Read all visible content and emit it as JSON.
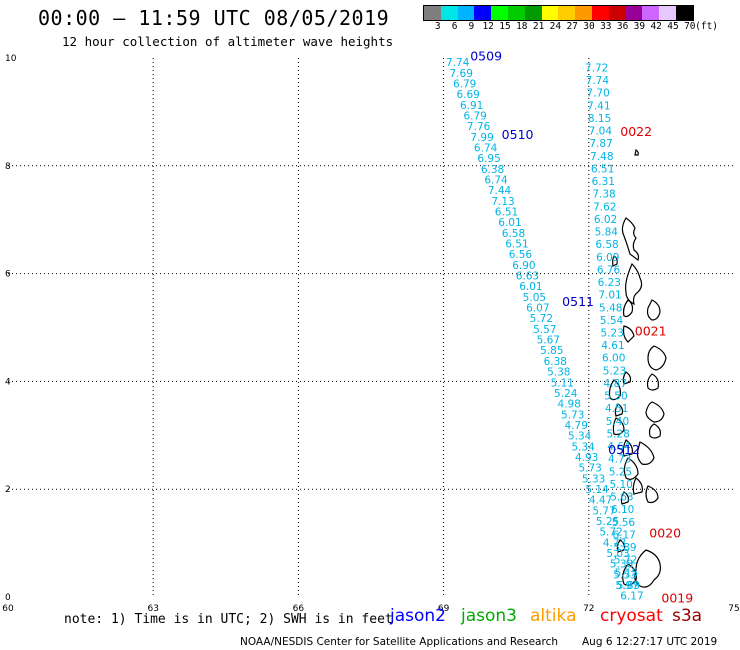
{
  "header": {
    "title": "00:00 – 11:59 UTC 08/05/2019",
    "subtitle": "12 hour collection of altimeter wave heights"
  },
  "colorbar": {
    "colors": [
      "#7f7f7f",
      "#00e6e6",
      "#00b4ff",
      "#0000ff",
      "#00ff00",
      "#00cc00",
      "#009900",
      "#ffff00",
      "#ffcc00",
      "#ff9900",
      "#ff0000",
      "#cc0000",
      "#990099",
      "#cc66ff",
      "#e6c8ff",
      "#000000"
    ],
    "labels": [
      "3",
      "6",
      "9",
      "12",
      "15",
      "18",
      "21",
      "24",
      "27",
      "30",
      "33",
      "36",
      "39",
      "42",
      "45",
      "70",
      "(ft)"
    ]
  },
  "axes": {
    "x_ticks": [
      "60",
      "63",
      "66",
      "69",
      "72",
      "75"
    ],
    "y_ticks": [
      "0",
      "2",
      "4",
      "6",
      "8",
      "10"
    ],
    "x_range": [
      60,
      75
    ],
    "y_range": [
      0,
      10
    ]
  },
  "tracks": [
    {
      "satellite": "jason2",
      "color": "#00b4e6",
      "values": [
        "7.74",
        "7.69",
        "6.79",
        "6.69",
        "6.91",
        "6.79",
        "7.76",
        "7.99",
        "6.74",
        "6.95",
        "6.38",
        "6.74",
        "7.44",
        "7.13",
        "6.51",
        "6.01",
        "6.58",
        "6.51",
        "6.56",
        "6.90",
        "6.63",
        "6.01",
        "5.05",
        "6.07",
        "5.72",
        "5.57",
        "5.67",
        "5.85",
        "6.38",
        "5.38",
        "5.11",
        "5.24",
        "4.98",
        "5.73",
        "4.79",
        "5.34",
        "5.34",
        "4.93",
        "5.73",
        "5.33",
        "5.14",
        "4.47",
        "5.77",
        "5.25",
        "5.72",
        "4.73",
        "5.03",
        "5.38",
        "5.53",
        "5.89",
        "6.17"
      ]
    },
    {
      "satellite": "jason2",
      "color": "#00b4e6",
      "values": [
        "7.72",
        "7.74",
        "7.70",
        "7.41",
        "8.15",
        "7.04",
        "7.87",
        "7.48",
        "6.51",
        "6.31",
        "7.38",
        "7.62",
        "6.02",
        "5.84",
        "6.58",
        "6.09",
        "6.76",
        "6.23",
        "7.01",
        "5.48",
        "5.54",
        "5.23",
        "4.61",
        "6.00",
        "5.23",
        "4.87",
        "5.50",
        "4.51",
        "5.40",
        "5.28",
        "4.64",
        "4.73",
        "5.25",
        "5.10",
        "5.63",
        "6.10",
        "5.56",
        "6.17",
        "5.89",
        "5.72",
        "5.15",
        "5.97"
      ]
    }
  ],
  "pass_labels": [
    {
      "text": "0509",
      "color": "#0000cc",
      "lon": 69.55,
      "lat": 9.95
    },
    {
      "text": "0510",
      "color": "#0000cc",
      "lon": 70.2,
      "lat": 8.5
    },
    {
      "text": "0511",
      "color": "#0000cc",
      "lon": 71.45,
      "lat": 5.4
    },
    {
      "text": "0512",
      "color": "#0000cc",
      "lon": 72.4,
      "lat": 2.65
    },
    {
      "text": "0022",
      "color": "#dd0000",
      "lon": 72.65,
      "lat": 8.55
    },
    {
      "text": "0021",
      "color": "#dd0000",
      "lon": 72.95,
      "lat": 4.85
    },
    {
      "text": "0020",
      "color": "#dd0000",
      "lon": 73.25,
      "lat": 1.1
    },
    {
      "text": "0019",
      "color": "#dd0000",
      "lon": 73.5,
      "lat": -0.1
    }
  ],
  "legend": {
    "note": "note: 1) Time is in UTC; 2) SWH is in feet",
    "satellites": [
      {
        "name": "jason2",
        "color": "#0000ff"
      },
      {
        "name": "jason3",
        "color": "#00aa00"
      },
      {
        "name": "altika",
        "color": "#ff9900"
      },
      {
        "name": "cryosat",
        "color": "#ff0000"
      },
      {
        "name": "s3a",
        "color": "#990000"
      }
    ]
  },
  "footer": {
    "credit": "NOAA/NESDIS Center for Satellite Applications and Research",
    "timestamp": "Aug  6 12:27:17 UTC 2019"
  }
}
